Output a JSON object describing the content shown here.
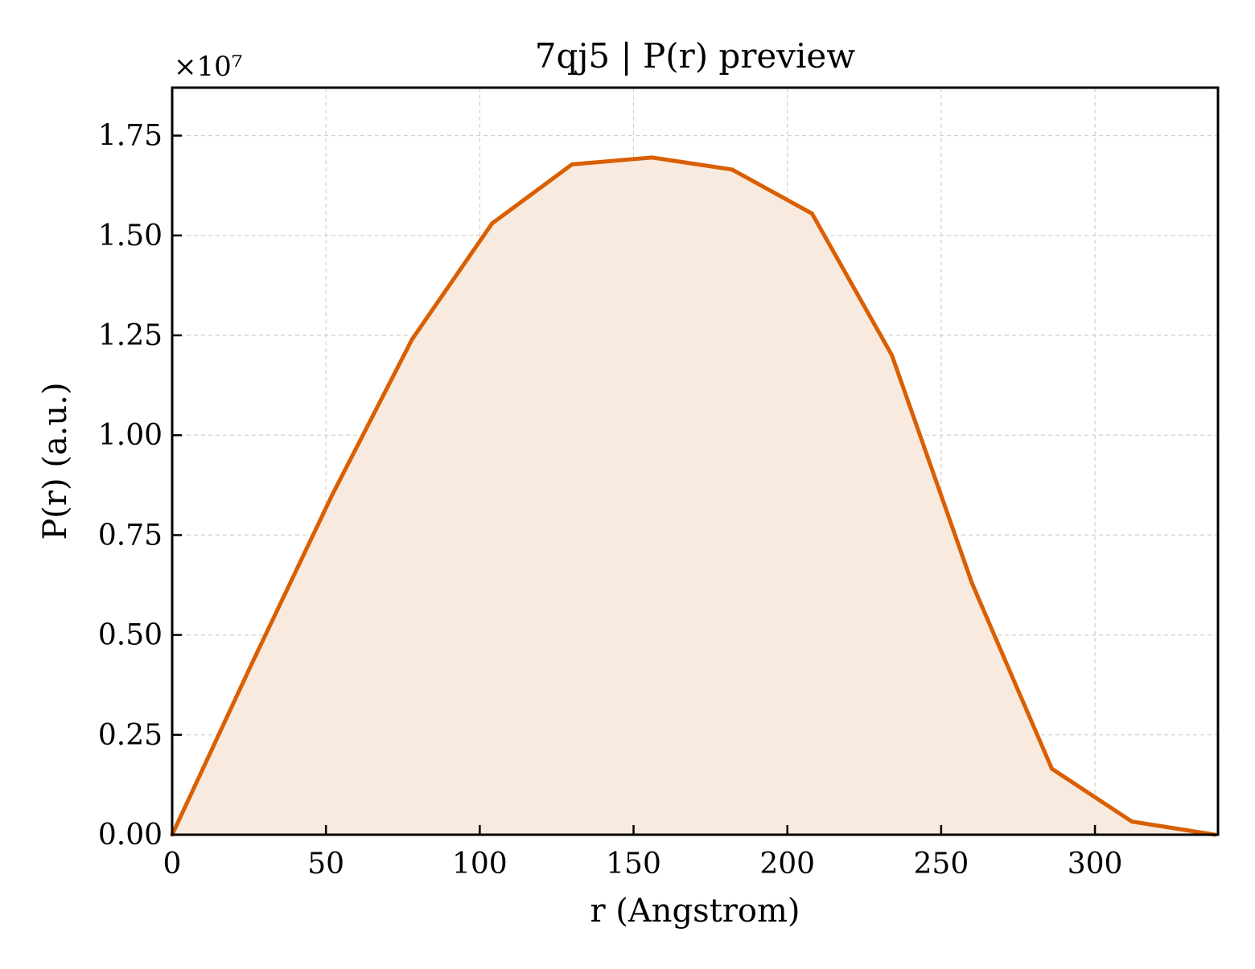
{
  "chart_data": {
    "type": "area",
    "title": "7qj5 | P(r) preview",
    "xlabel": "r (Angstrom)",
    "ylabel": "P(r) (a.u.)",
    "y_offset_label": "×10⁷",
    "y_scale": 10000000,
    "xlim": [
      0,
      340
    ],
    "ylim": [
      0,
      18700000
    ],
    "x_ticks": [
      0,
      50,
      100,
      150,
      200,
      250,
      300
    ],
    "y_ticks": [
      0,
      2500000,
      5000000,
      7500000,
      10000000,
      12500000,
      15000000,
      17500000
    ],
    "y_tick_labels": [
      "0.00",
      "0.25",
      "0.50",
      "0.75",
      "1.00",
      "1.25",
      "1.50",
      "1.75"
    ],
    "grid": true,
    "legend": "none",
    "series": [
      {
        "color": "#d95f02",
        "fill_color": "#f8eadf",
        "x": [
          0,
          26,
          52,
          78,
          104,
          130,
          156,
          182,
          208,
          234,
          260,
          286,
          312,
          339
        ],
        "y": [
          0,
          4300000,
          8500000,
          12400000,
          15300000,
          16780000,
          16950000,
          16650000,
          15550000,
          12000000,
          6300000,
          1650000,
          330000,
          0
        ]
      }
    ]
  }
}
